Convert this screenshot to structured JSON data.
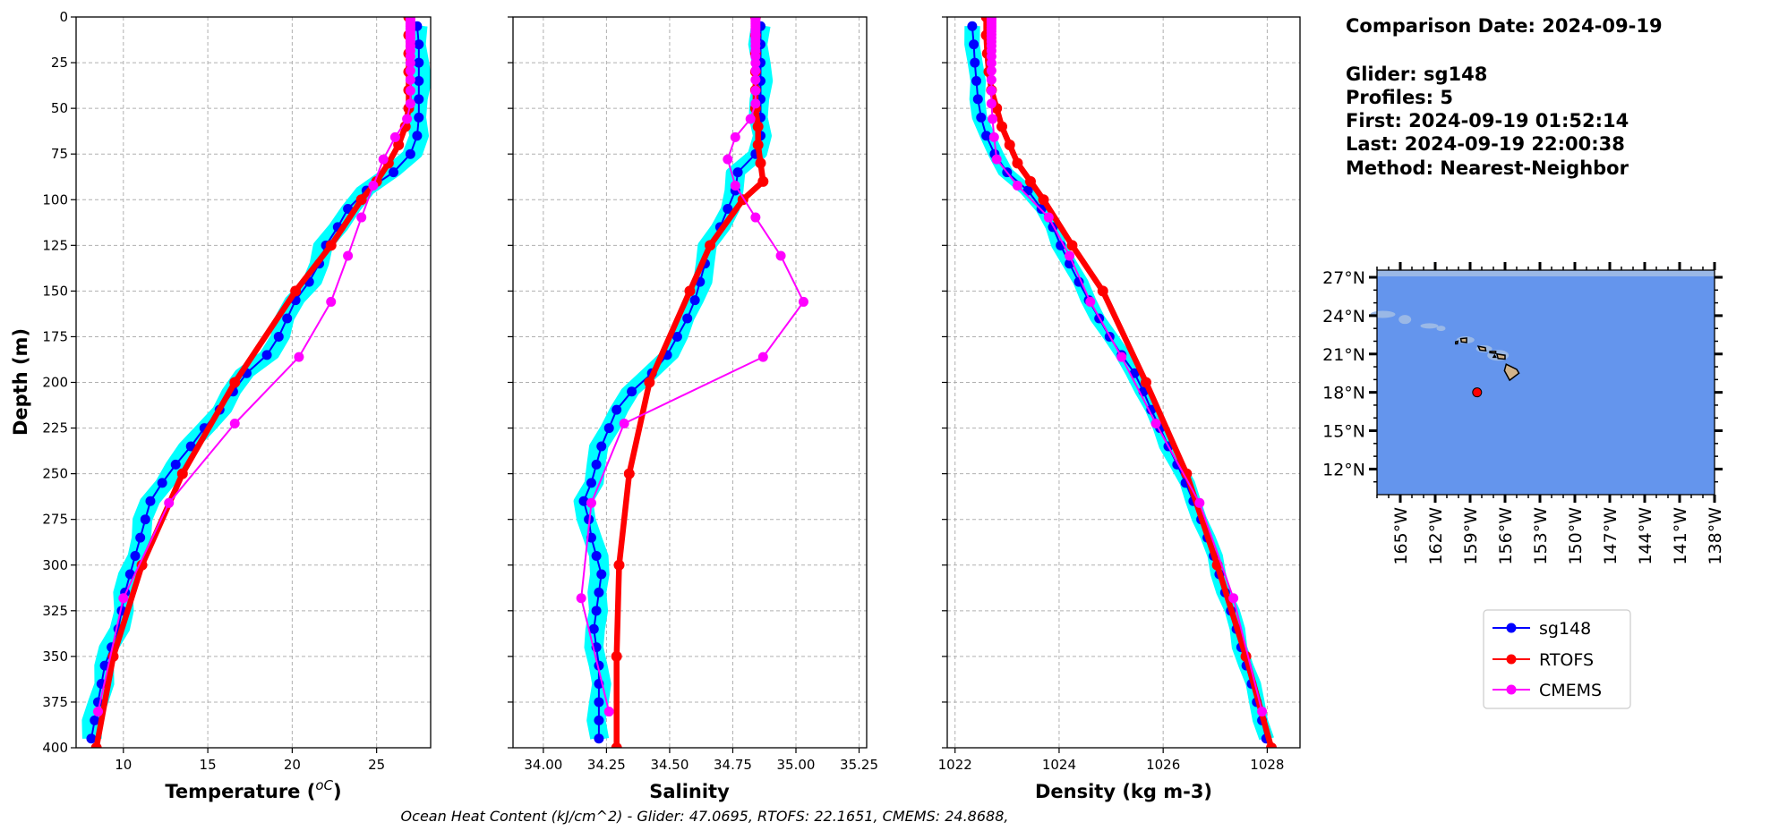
{
  "info": {
    "lines": [
      "Comparison Date: 2024-09-19",
      "Glider: sg148",
      "Profiles: 5",
      "First: 2024-09-19 01:52:14",
      "Last: 2024-09-19 22:00:38",
      "Method: Nearest-Neighbor"
    ]
  },
  "caption": "Ocean Heat Content (kJ/cm^2) - Glider: 47.0695,  RTOFS: 22.1651,  CMEMS: 24.8688,",
  "colors": {
    "glider": "#0000ff",
    "glider_profiles": "#00ffff",
    "rtofs": "#ff0000",
    "cmems": "#ff00ff",
    "ocean": "#6495ed",
    "land": "#d2b48c",
    "marker": "#ff0000"
  },
  "chart_data": [
    {
      "type": "line",
      "xlabel": "Temperature (",
      "xlabel_unit": "oC",
      "xlabel_close": ")",
      "ylabel": "Depth (m)",
      "xlim": [
        7.2,
        28.2
      ],
      "ylim": [
        400,
        0
      ],
      "xticks": [
        "10",
        "15",
        "20",
        "25"
      ],
      "yticks": [
        "0",
        "25",
        "50",
        "75",
        "100",
        "125",
        "150",
        "175",
        "200",
        "225",
        "250",
        "275",
        "300",
        "325",
        "350",
        "375",
        "400"
      ],
      "grid": true,
      "series": [
        {
          "name": "sg148",
          "key": "glider",
          "depth": [
            5,
            15,
            25,
            35,
            45,
            55,
            65,
            75,
            85,
            95,
            105,
            115,
            125,
            135,
            145,
            155,
            165,
            175,
            185,
            195,
            205,
            215,
            225,
            235,
            245,
            255,
            265,
            275,
            285,
            295,
            305,
            315,
            325,
            335,
            345,
            355,
            365,
            375,
            385,
            395
          ],
          "values": [
            27.4,
            27.5,
            27.5,
            27.5,
            27.5,
            27.5,
            27.4,
            27.0,
            26.0,
            24.4,
            23.3,
            22.7,
            22.0,
            21.6,
            21.0,
            20.2,
            19.7,
            19.2,
            18.5,
            17.3,
            16.5,
            15.7,
            14.8,
            14.0,
            13.1,
            12.3,
            11.6,
            11.3,
            11.0,
            10.7,
            10.4,
            10.1,
            9.9,
            9.7,
            9.3,
            8.9,
            8.7,
            8.5,
            8.3,
            8.1
          ]
        },
        {
          "name": "RTOFS",
          "key": "rtofs",
          "depth": [
            0,
            10,
            20,
            30,
            40,
            50,
            60,
            70,
            80,
            90,
            100,
            125,
            150,
            200,
            250,
            300,
            350,
            400
          ],
          "values": [
            26.9,
            26.9,
            26.9,
            26.9,
            26.9,
            26.9,
            26.7,
            26.3,
            25.7,
            25.0,
            24.1,
            22.3,
            20.2,
            16.6,
            13.5,
            11.1,
            9.4,
            8.4
          ]
        },
        {
          "name": "CMEMS",
          "key": "cmems",
          "depth": [
            0.5,
            1.5,
            2.6,
            3.8,
            5.1,
            6.4,
            7.9,
            9.6,
            11.4,
            13.5,
            15.8,
            18.5,
            21.6,
            25.2,
            29.4,
            34.4,
            40.3,
            47.4,
            55.8,
            65.8,
            77.9,
            92.3,
            109.7,
            130.7,
            155.9,
            186.1,
            222.5,
            266.0,
            318.1,
            380.2
          ],
          "values": [
            27.0,
            27.0,
            27.0,
            27.0,
            27.0,
            27.0,
            27.0,
            27.0,
            27.0,
            27.0,
            27.0,
            27.0,
            27.0,
            27.0,
            27.0,
            27.0,
            27.0,
            27.0,
            26.8,
            26.1,
            25.4,
            24.8,
            24.1,
            23.3,
            22.3,
            20.4,
            16.6,
            12.7,
            10.0,
            8.5
          ]
        }
      ]
    },
    {
      "type": "line",
      "xlabel": "Salinity",
      "xlim": [
        33.88,
        35.28
      ],
      "ylim": [
        400,
        0
      ],
      "xticks": [
        "34.00",
        "34.25",
        "34.50",
        "34.75",
        "35.00",
        "35.25"
      ],
      "grid": true,
      "series": [
        {
          "name": "sg148",
          "key": "glider",
          "depth": [
            5,
            15,
            25,
            35,
            45,
            55,
            65,
            75,
            85,
            95,
            105,
            115,
            125,
            135,
            145,
            155,
            165,
            175,
            185,
            195,
            205,
            215,
            225,
            235,
            245,
            255,
            265,
            275,
            285,
            295,
            305,
            315,
            325,
            335,
            345,
            355,
            365,
            375,
            385,
            395
          ],
          "values": [
            34.86,
            34.86,
            34.86,
            34.86,
            34.86,
            34.86,
            34.86,
            34.84,
            34.77,
            34.76,
            34.73,
            34.7,
            34.66,
            34.64,
            34.62,
            34.6,
            34.57,
            34.53,
            34.49,
            34.43,
            34.35,
            34.29,
            34.26,
            34.23,
            34.21,
            34.19,
            34.16,
            34.18,
            34.19,
            34.21,
            34.23,
            34.22,
            34.21,
            34.2,
            34.21,
            34.22,
            34.22,
            34.22,
            34.22,
            34.22
          ]
        },
        {
          "name": "RTOFS",
          "key": "rtofs",
          "depth": [
            0,
            10,
            20,
            30,
            40,
            50,
            60,
            70,
            80,
            90,
            100,
            125,
            150,
            200,
            250,
            300,
            350,
            400
          ],
          "values": [
            34.84,
            34.84,
            34.84,
            34.84,
            34.84,
            34.84,
            34.85,
            34.85,
            34.86,
            34.87,
            34.79,
            34.66,
            34.58,
            34.42,
            34.34,
            34.3,
            34.29,
            34.29
          ]
        },
        {
          "name": "CMEMS",
          "key": "cmems",
          "depth": [
            0.5,
            1.5,
            2.6,
            3.8,
            5.1,
            6.4,
            7.9,
            9.6,
            11.4,
            13.5,
            15.8,
            18.5,
            21.6,
            25.2,
            29.4,
            34.4,
            40.3,
            47.4,
            55.8,
            65.8,
            77.9,
            92.3,
            109.7,
            130.7,
            155.9,
            186.1,
            222.5,
            266.0,
            318.1,
            380.2
          ],
          "values": [
            34.84,
            34.84,
            34.84,
            34.84,
            34.84,
            34.84,
            34.84,
            34.84,
            34.84,
            34.84,
            34.84,
            34.84,
            34.84,
            34.84,
            34.84,
            34.84,
            34.84,
            34.84,
            34.82,
            34.76,
            34.73,
            34.76,
            34.84,
            34.94,
            35.03,
            34.87,
            34.32,
            34.19,
            34.15,
            34.26
          ]
        }
      ]
    },
    {
      "type": "line",
      "xlabel": "Density (kg m-3)",
      "xlim": [
        1021.85,
        1028.63
      ],
      "ylim": [
        400,
        0
      ],
      "xticks": [
        "1022",
        "1024",
        "1026",
        "1028"
      ],
      "grid": true,
      "series": [
        {
          "name": "sg148",
          "key": "glider",
          "depth": [
            5,
            15,
            25,
            35,
            45,
            55,
            65,
            75,
            85,
            95,
            105,
            115,
            125,
            135,
            145,
            155,
            165,
            175,
            185,
            195,
            205,
            215,
            225,
            235,
            245,
            255,
            265,
            275,
            285,
            295,
            305,
            315,
            325,
            335,
            345,
            355,
            365,
            375,
            385,
            395
          ],
          "values": [
            1022.33,
            1022.36,
            1022.38,
            1022.41,
            1022.44,
            1022.5,
            1022.6,
            1022.76,
            1023.0,
            1023.4,
            1023.66,
            1023.88,
            1024.03,
            1024.2,
            1024.38,
            1024.57,
            1024.77,
            1024.97,
            1025.2,
            1025.45,
            1025.62,
            1025.77,
            1025.94,
            1026.1,
            1026.27,
            1026.43,
            1026.58,
            1026.73,
            1026.85,
            1026.97,
            1027.08,
            1027.19,
            1027.3,
            1027.41,
            1027.5,
            1027.6,
            1027.7,
            1027.8,
            1027.9,
            1027.98
          ]
        },
        {
          "name": "RTOFS",
          "key": "rtofs",
          "depth": [
            0,
            10,
            20,
            30,
            40,
            50,
            60,
            70,
            80,
            90,
            100,
            125,
            150,
            200,
            250,
            300,
            350,
            400
          ],
          "values": [
            1022.6,
            1022.6,
            1022.62,
            1022.65,
            1022.7,
            1022.8,
            1022.9,
            1023.05,
            1023.2,
            1023.45,
            1023.7,
            1024.25,
            1024.84,
            1025.67,
            1026.45,
            1027.04,
            1027.59,
            1028.08
          ]
        },
        {
          "name": "CMEMS",
          "key": "cmems",
          "depth": [
            0.5,
            1.5,
            2.6,
            3.8,
            5.1,
            6.4,
            7.9,
            9.6,
            11.4,
            13.5,
            15.8,
            18.5,
            21.6,
            25.2,
            29.4,
            34.4,
            40.3,
            47.4,
            55.8,
            65.8,
            77.9,
            92.3,
            109.7,
            130.7,
            155.9,
            186.1,
            222.5,
            266.0,
            318.1,
            380.2
          ],
          "values": [
            1022.7,
            1022.7,
            1022.7,
            1022.7,
            1022.7,
            1022.7,
            1022.7,
            1022.7,
            1022.7,
            1022.7,
            1022.7,
            1022.7,
            1022.7,
            1022.7,
            1022.7,
            1022.7,
            1022.7,
            1022.7,
            1022.72,
            1022.75,
            1022.8,
            1023.2,
            1023.8,
            1024.2,
            1024.6,
            1025.2,
            1025.86,
            1026.7,
            1027.35,
            1027.9
          ]
        }
      ]
    }
  ],
  "map": {
    "lon_range": [
      -167,
      -138
    ],
    "lat_range": [
      10,
      27.56
    ],
    "lat_ticks": [
      "27°N",
      "24°N",
      "21°N",
      "18°N",
      "15°N",
      "12°N"
    ],
    "lat_tick_values": [
      27,
      24,
      21,
      18,
      15,
      12
    ],
    "lon_ticks": [
      "165°W",
      "162°W",
      "159°W",
      "156°W",
      "153°W",
      "150°W",
      "147°W",
      "144°W",
      "141°W",
      "138°W"
    ],
    "lon_tick_values": [
      -165,
      -162,
      -159,
      -156,
      -153,
      -150,
      -147,
      -144,
      -141,
      -138
    ],
    "glider_location": {
      "lat": 18.0,
      "lon": -158.4
    }
  },
  "legend": {
    "placement": "lower-right",
    "entries": [
      {
        "label": "sg148",
        "key": "glider"
      },
      {
        "label": "RTOFS",
        "key": "rtofs"
      },
      {
        "label": "CMEMS",
        "key": "cmems"
      }
    ]
  }
}
